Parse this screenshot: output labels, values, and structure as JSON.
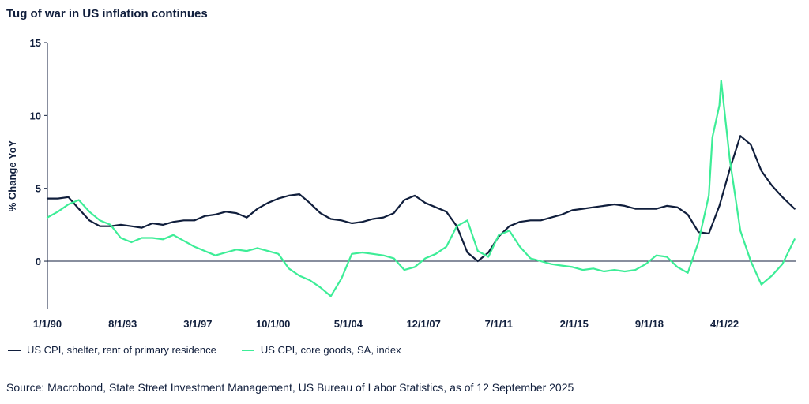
{
  "chart_data": {
    "type": "line",
    "title": "Tug of war in US inflation continues",
    "xlabel": "",
    "ylabel": "% Change YoY",
    "ylim": [
      -3.3,
      15
    ],
    "yticks": [
      0,
      5,
      10,
      15
    ],
    "xlim": [
      "1990-01-01",
      "2025-09-01"
    ],
    "xticks": [
      {
        "date": "1990-01-01",
        "label": "1/1/90"
      },
      {
        "date": "1993-08-01",
        "label": "8/1/93"
      },
      {
        "date": "1997-03-01",
        "label": "3/1/97"
      },
      {
        "date": "2000-10-01",
        "label": "10/1/00"
      },
      {
        "date": "2004-05-01",
        "label": "5/1/04"
      },
      {
        "date": "2007-12-01",
        "label": "12/1/07"
      },
      {
        "date": "2011-07-01",
        "label": "7/1/11"
      },
      {
        "date": "2015-02-01",
        "label": "2/1/15"
      },
      {
        "date": "2018-09-01",
        "label": "9/1/18"
      },
      {
        "date": "2022-04-01",
        "label": "4/1/22"
      }
    ],
    "series": [
      {
        "name": "US CPI, shelter, rent of primary residence",
        "color": "#101e3c",
        "points": [
          [
            "1990-01-01",
            4.3
          ],
          [
            "1990-07-01",
            4.3
          ],
          [
            "1991-01-01",
            4.4
          ],
          [
            "1991-07-01",
            3.6
          ],
          [
            "1992-01-01",
            2.8
          ],
          [
            "1992-07-01",
            2.4
          ],
          [
            "1993-01-01",
            2.4
          ],
          [
            "1993-07-01",
            2.5
          ],
          [
            "1994-01-01",
            2.4
          ],
          [
            "1994-07-01",
            2.3
          ],
          [
            "1995-01-01",
            2.6
          ],
          [
            "1995-07-01",
            2.5
          ],
          [
            "1996-01-01",
            2.7
          ],
          [
            "1996-07-01",
            2.8
          ],
          [
            "1997-01-01",
            2.8
          ],
          [
            "1997-07-01",
            3.1
          ],
          [
            "1998-01-01",
            3.2
          ],
          [
            "1998-07-01",
            3.4
          ],
          [
            "1999-01-01",
            3.3
          ],
          [
            "1999-07-01",
            3.0
          ],
          [
            "2000-01-01",
            3.6
          ],
          [
            "2000-07-01",
            4.0
          ],
          [
            "2001-01-01",
            4.3
          ],
          [
            "2001-07-01",
            4.5
          ],
          [
            "2002-01-01",
            4.6
          ],
          [
            "2002-07-01",
            4.0
          ],
          [
            "2003-01-01",
            3.3
          ],
          [
            "2003-07-01",
            2.9
          ],
          [
            "2004-01-01",
            2.8
          ],
          [
            "2004-07-01",
            2.6
          ],
          [
            "2005-01-01",
            2.7
          ],
          [
            "2005-07-01",
            2.9
          ],
          [
            "2006-01-01",
            3.0
          ],
          [
            "2006-07-01",
            3.3
          ],
          [
            "2007-01-01",
            4.2
          ],
          [
            "2007-07-01",
            4.5
          ],
          [
            "2008-01-01",
            4.0
          ],
          [
            "2008-07-01",
            3.7
          ],
          [
            "2009-01-01",
            3.4
          ],
          [
            "2009-07-01",
            2.4
          ],
          [
            "2010-01-01",
            0.6
          ],
          [
            "2010-07-01",
            0.0
          ],
          [
            "2011-01-01",
            0.6
          ],
          [
            "2011-07-01",
            1.7
          ],
          [
            "2012-01-01",
            2.4
          ],
          [
            "2012-07-01",
            2.7
          ],
          [
            "2013-01-01",
            2.8
          ],
          [
            "2013-07-01",
            2.8
          ],
          [
            "2014-01-01",
            3.0
          ],
          [
            "2014-07-01",
            3.2
          ],
          [
            "2015-01-01",
            3.5
          ],
          [
            "2015-07-01",
            3.6
          ],
          [
            "2016-01-01",
            3.7
          ],
          [
            "2016-07-01",
            3.8
          ],
          [
            "2017-01-01",
            3.9
          ],
          [
            "2017-07-01",
            3.8
          ],
          [
            "2018-01-01",
            3.6
          ],
          [
            "2018-07-01",
            3.6
          ],
          [
            "2019-01-01",
            3.6
          ],
          [
            "2019-07-01",
            3.8
          ],
          [
            "2020-01-01",
            3.7
          ],
          [
            "2020-07-01",
            3.2
          ],
          [
            "2021-01-01",
            2.0
          ],
          [
            "2021-07-01",
            1.9
          ],
          [
            "2022-01-01",
            3.8
          ],
          [
            "2022-07-01",
            6.3
          ],
          [
            "2023-01-01",
            8.6
          ],
          [
            "2023-07-01",
            8.0
          ],
          [
            "2024-01-01",
            6.2
          ],
          [
            "2024-07-01",
            5.2
          ],
          [
            "2025-01-01",
            4.4
          ],
          [
            "2025-08-01",
            3.6
          ]
        ]
      },
      {
        "name": "US CPI, core goods, SA, index",
        "color": "#3ded97",
        "points": [
          [
            "1990-01-01",
            3.0
          ],
          [
            "1990-07-01",
            3.4
          ],
          [
            "1991-01-01",
            3.9
          ],
          [
            "1991-07-01",
            4.2
          ],
          [
            "1992-01-01",
            3.4
          ],
          [
            "1992-07-01",
            2.8
          ],
          [
            "1993-01-01",
            2.5
          ],
          [
            "1993-07-01",
            1.6
          ],
          [
            "1994-01-01",
            1.3
          ],
          [
            "1994-07-01",
            1.6
          ],
          [
            "1995-01-01",
            1.6
          ],
          [
            "1995-07-01",
            1.5
          ],
          [
            "1996-01-01",
            1.8
          ],
          [
            "1996-07-01",
            1.4
          ],
          [
            "1997-01-01",
            1.0
          ],
          [
            "1997-07-01",
            0.7
          ],
          [
            "1998-01-01",
            0.4
          ],
          [
            "1998-07-01",
            0.6
          ],
          [
            "1999-01-01",
            0.8
          ],
          [
            "1999-07-01",
            0.7
          ],
          [
            "2000-01-01",
            0.9
          ],
          [
            "2000-07-01",
            0.7
          ],
          [
            "2001-01-01",
            0.5
          ],
          [
            "2001-07-01",
            -0.5
          ],
          [
            "2002-01-01",
            -1.0
          ],
          [
            "2002-07-01",
            -1.3
          ],
          [
            "2003-01-01",
            -1.8
          ],
          [
            "2003-07-01",
            -2.4
          ],
          [
            "2004-01-01",
            -1.2
          ],
          [
            "2004-07-01",
            0.5
          ],
          [
            "2005-01-01",
            0.6
          ],
          [
            "2005-07-01",
            0.5
          ],
          [
            "2006-01-01",
            0.4
          ],
          [
            "2006-07-01",
            0.2
          ],
          [
            "2007-01-01",
            -0.6
          ],
          [
            "2007-07-01",
            -0.4
          ],
          [
            "2008-01-01",
            0.2
          ],
          [
            "2008-07-01",
            0.5
          ],
          [
            "2009-01-01",
            1.0
          ],
          [
            "2009-07-01",
            2.4
          ],
          [
            "2010-01-01",
            2.8
          ],
          [
            "2010-07-01",
            0.7
          ],
          [
            "2011-01-01",
            0.3
          ],
          [
            "2011-07-01",
            1.8
          ],
          [
            "2012-01-01",
            2.1
          ],
          [
            "2012-07-01",
            1.0
          ],
          [
            "2013-01-01",
            0.2
          ],
          [
            "2013-07-01",
            0.0
          ],
          [
            "2014-01-01",
            -0.2
          ],
          [
            "2014-07-01",
            -0.3
          ],
          [
            "2015-01-01",
            -0.4
          ],
          [
            "2015-07-01",
            -0.6
          ],
          [
            "2016-01-01",
            -0.5
          ],
          [
            "2016-07-01",
            -0.7
          ],
          [
            "2017-01-01",
            -0.6
          ],
          [
            "2017-07-01",
            -0.7
          ],
          [
            "2018-01-01",
            -0.6
          ],
          [
            "2018-07-01",
            -0.2
          ],
          [
            "2019-01-01",
            0.4
          ],
          [
            "2019-07-01",
            0.3
          ],
          [
            "2020-01-01",
            -0.4
          ],
          [
            "2020-07-01",
            -0.8
          ],
          [
            "2021-01-01",
            1.3
          ],
          [
            "2021-07-01",
            4.5
          ],
          [
            "2021-09-01",
            8.5
          ],
          [
            "2022-01-01",
            10.7
          ],
          [
            "2022-02-01",
            12.4
          ],
          [
            "2022-07-01",
            7.0
          ],
          [
            "2023-01-01",
            2.1
          ],
          [
            "2023-07-01",
            0.0
          ],
          [
            "2024-01-01",
            -1.6
          ],
          [
            "2024-07-01",
            -1.0
          ],
          [
            "2025-01-01",
            -0.2
          ],
          [
            "2025-08-01",
            1.5
          ]
        ]
      }
    ]
  },
  "legend": {
    "items": [
      {
        "label": "US CPI, shelter, rent of primary residence",
        "color": "#101e3c"
      },
      {
        "label": "US CPI, core goods, SA, index",
        "color": "#3ded97"
      }
    ]
  },
  "source": "Source: Macrobond, State Street Investment Management, US Bureau of Labor Statistics, as of 12 September 2025"
}
